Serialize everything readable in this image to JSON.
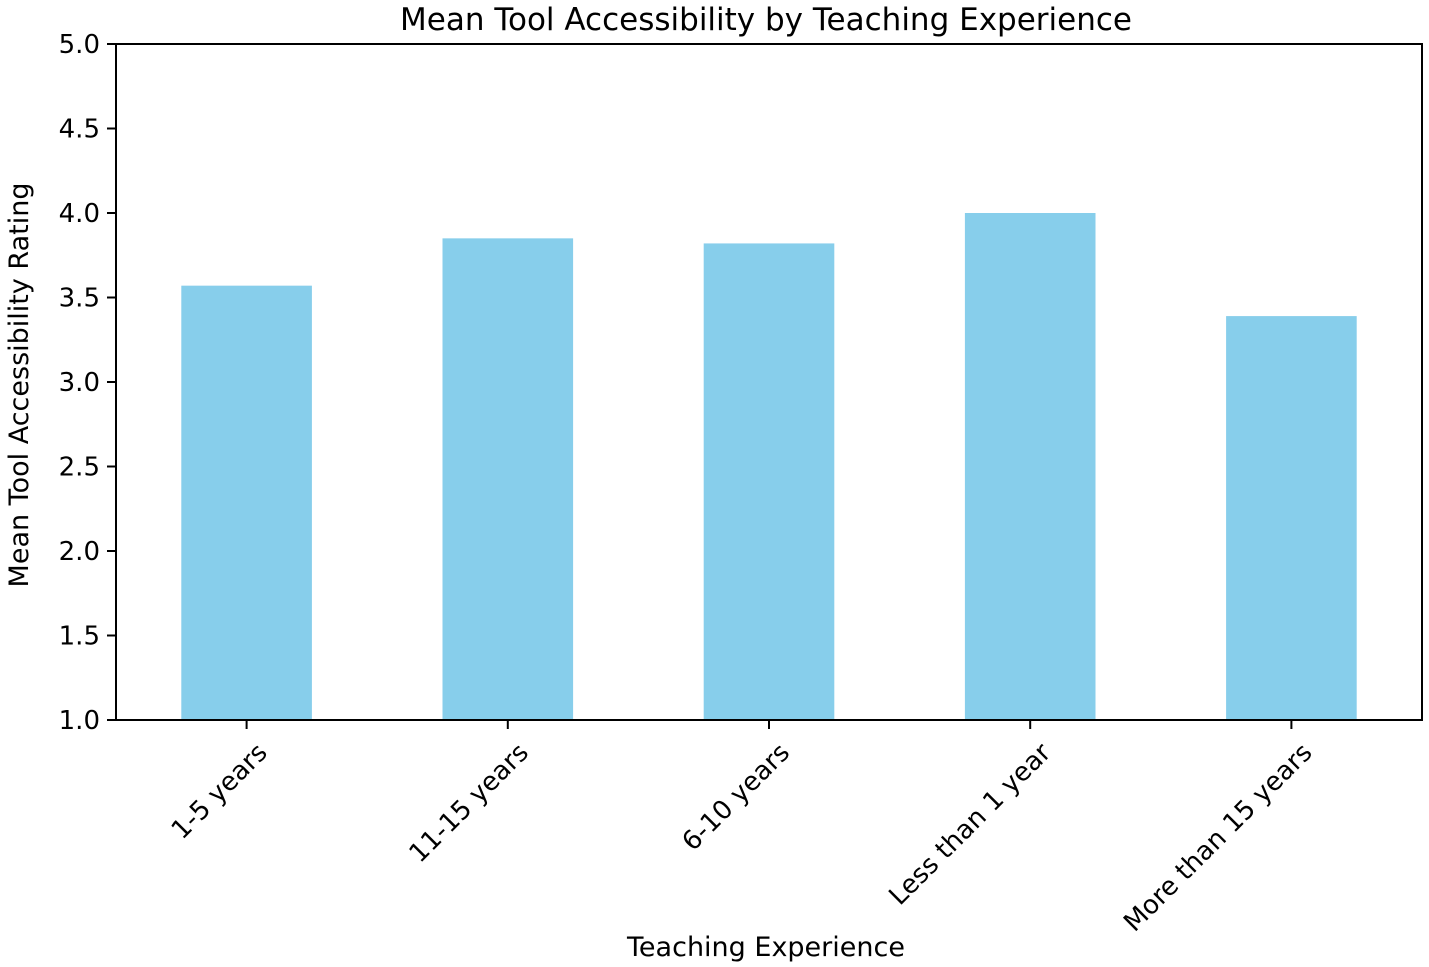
{
  "chart_data": {
    "type": "bar",
    "title": "Mean Tool Accessibility by Teaching Experience",
    "xlabel": "Teaching Experience",
    "ylabel": "Mean Tool Accessibility Rating",
    "categories": [
      "1-5 years",
      "11-15 years",
      "6-10 years",
      "Less than 1 year",
      "More than 15 years"
    ],
    "values": [
      3.57,
      3.85,
      3.82,
      4.0,
      3.39
    ],
    "ylim": [
      1.0,
      5.0
    ],
    "yticks": [
      "1.0",
      "1.5",
      "2.0",
      "2.5",
      "3.0",
      "3.5",
      "4.0",
      "4.5",
      "5.0"
    ],
    "bar_color": "#87ceeb",
    "grid": false,
    "legend": "none"
  }
}
